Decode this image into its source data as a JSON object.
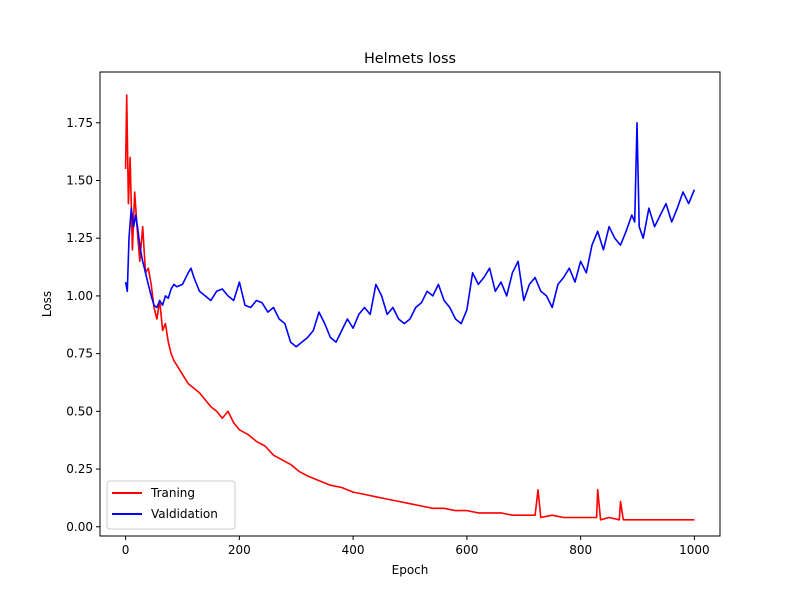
{
  "chart_data": {
    "type": "line",
    "title": "Helmets loss",
    "xlabel": "Epoch",
    "ylabel": "Loss",
    "xlim": [
      -45,
      1045
    ],
    "ylim": [
      -0.04,
      1.97
    ],
    "xticks": [
      0,
      200,
      400,
      600,
      800,
      1000
    ],
    "xtick_labels": [
      "0",
      "200",
      "400",
      "600",
      "800",
      "1000"
    ],
    "yticks": [
      0.0,
      0.25,
      0.5,
      0.75,
      1.0,
      1.25,
      1.5,
      1.75
    ],
    "ytick_labels": [
      "0.00",
      "0.25",
      "0.50",
      "0.75",
      "1.00",
      "1.25",
      "1.50",
      "1.75"
    ],
    "grid": false,
    "legend_position": "lower-left",
    "series": [
      {
        "name": "Traning",
        "color": "#ff0000",
        "x": [
          0,
          2,
          5,
          8,
          12,
          16,
          20,
          25,
          30,
          35,
          40,
          45,
          50,
          55,
          60,
          65,
          70,
          75,
          80,
          85,
          90,
          95,
          100,
          110,
          120,
          130,
          140,
          150,
          160,
          170,
          180,
          190,
          200,
          215,
          230,
          245,
          260,
          275,
          290,
          305,
          320,
          340,
          360,
          380,
          400,
          420,
          440,
          460,
          480,
          500,
          520,
          540,
          560,
          580,
          600,
          620,
          640,
          660,
          680,
          700,
          720,
          725,
          730,
          750,
          770,
          790,
          810,
          828,
          830,
          835,
          850,
          868,
          870,
          875,
          890,
          910,
          930,
          950,
          970,
          990,
          1000
        ],
        "y": [
          1.55,
          1.87,
          1.4,
          1.6,
          1.2,
          1.45,
          1.3,
          1.15,
          1.3,
          1.1,
          1.12,
          1.05,
          0.95,
          0.9,
          0.98,
          0.85,
          0.88,
          0.8,
          0.75,
          0.72,
          0.7,
          0.68,
          0.66,
          0.62,
          0.6,
          0.58,
          0.55,
          0.52,
          0.5,
          0.47,
          0.5,
          0.45,
          0.42,
          0.4,
          0.37,
          0.35,
          0.31,
          0.29,
          0.27,
          0.24,
          0.22,
          0.2,
          0.18,
          0.17,
          0.15,
          0.14,
          0.13,
          0.12,
          0.11,
          0.1,
          0.09,
          0.08,
          0.08,
          0.07,
          0.07,
          0.06,
          0.06,
          0.06,
          0.05,
          0.05,
          0.05,
          0.16,
          0.04,
          0.05,
          0.04,
          0.04,
          0.04,
          0.04,
          0.16,
          0.03,
          0.04,
          0.03,
          0.11,
          0.03,
          0.03,
          0.03,
          0.03,
          0.03,
          0.03,
          0.03,
          0.03
        ]
      },
      {
        "name": "Valdidation",
        "color": "#0000ff",
        "x": [
          0,
          3,
          6,
          10,
          14,
          18,
          22,
          26,
          30,
          35,
          40,
          45,
          50,
          55,
          60,
          65,
          70,
          75,
          80,
          85,
          90,
          100,
          110,
          115,
          120,
          130,
          140,
          150,
          160,
          170,
          180,
          190,
          200,
          210,
          220,
          230,
          240,
          250,
          260,
          270,
          280,
          290,
          300,
          310,
          320,
          330,
          340,
          350,
          360,
          370,
          380,
          390,
          400,
          410,
          420,
          430,
          440,
          450,
          460,
          470,
          480,
          490,
          500,
          510,
          520,
          530,
          540,
          550,
          560,
          570,
          580,
          590,
          600,
          610,
          620,
          630,
          640,
          650,
          660,
          670,
          680,
          690,
          700,
          710,
          720,
          730,
          740,
          750,
          760,
          770,
          780,
          790,
          800,
          810,
          820,
          830,
          840,
          850,
          860,
          870,
          880,
          890,
          895,
          899,
          903,
          910,
          920,
          930,
          940,
          950,
          960,
          970,
          980,
          990,
          1000
        ],
        "y": [
          1.06,
          1.02,
          1.25,
          1.38,
          1.3,
          1.35,
          1.28,
          1.2,
          1.15,
          1.1,
          1.05,
          1.0,
          0.96,
          0.95,
          0.98,
          0.96,
          1.0,
          0.99,
          1.03,
          1.05,
          1.04,
          1.05,
          1.1,
          1.12,
          1.08,
          1.02,
          1.0,
          0.98,
          1.02,
          1.03,
          1.0,
          0.98,
          1.06,
          0.96,
          0.95,
          0.98,
          0.97,
          0.93,
          0.95,
          0.9,
          0.88,
          0.8,
          0.78,
          0.8,
          0.82,
          0.85,
          0.93,
          0.88,
          0.82,
          0.8,
          0.85,
          0.9,
          0.86,
          0.92,
          0.95,
          0.92,
          1.05,
          1.0,
          0.92,
          0.95,
          0.9,
          0.88,
          0.9,
          0.95,
          0.97,
          1.02,
          1.0,
          1.05,
          0.98,
          0.95,
          0.9,
          0.88,
          0.94,
          1.1,
          1.05,
          1.08,
          1.12,
          1.02,
          1.06,
          1.0,
          1.1,
          1.15,
          0.98,
          1.05,
          1.08,
          1.02,
          1.0,
          0.95,
          1.05,
          1.08,
          1.12,
          1.06,
          1.15,
          1.1,
          1.22,
          1.28,
          1.2,
          1.3,
          1.25,
          1.22,
          1.28,
          1.35,
          1.32,
          1.75,
          1.3,
          1.25,
          1.38,
          1.3,
          1.35,
          1.4,
          1.32,
          1.38,
          1.45,
          1.4,
          1.46
        ]
      }
    ]
  }
}
